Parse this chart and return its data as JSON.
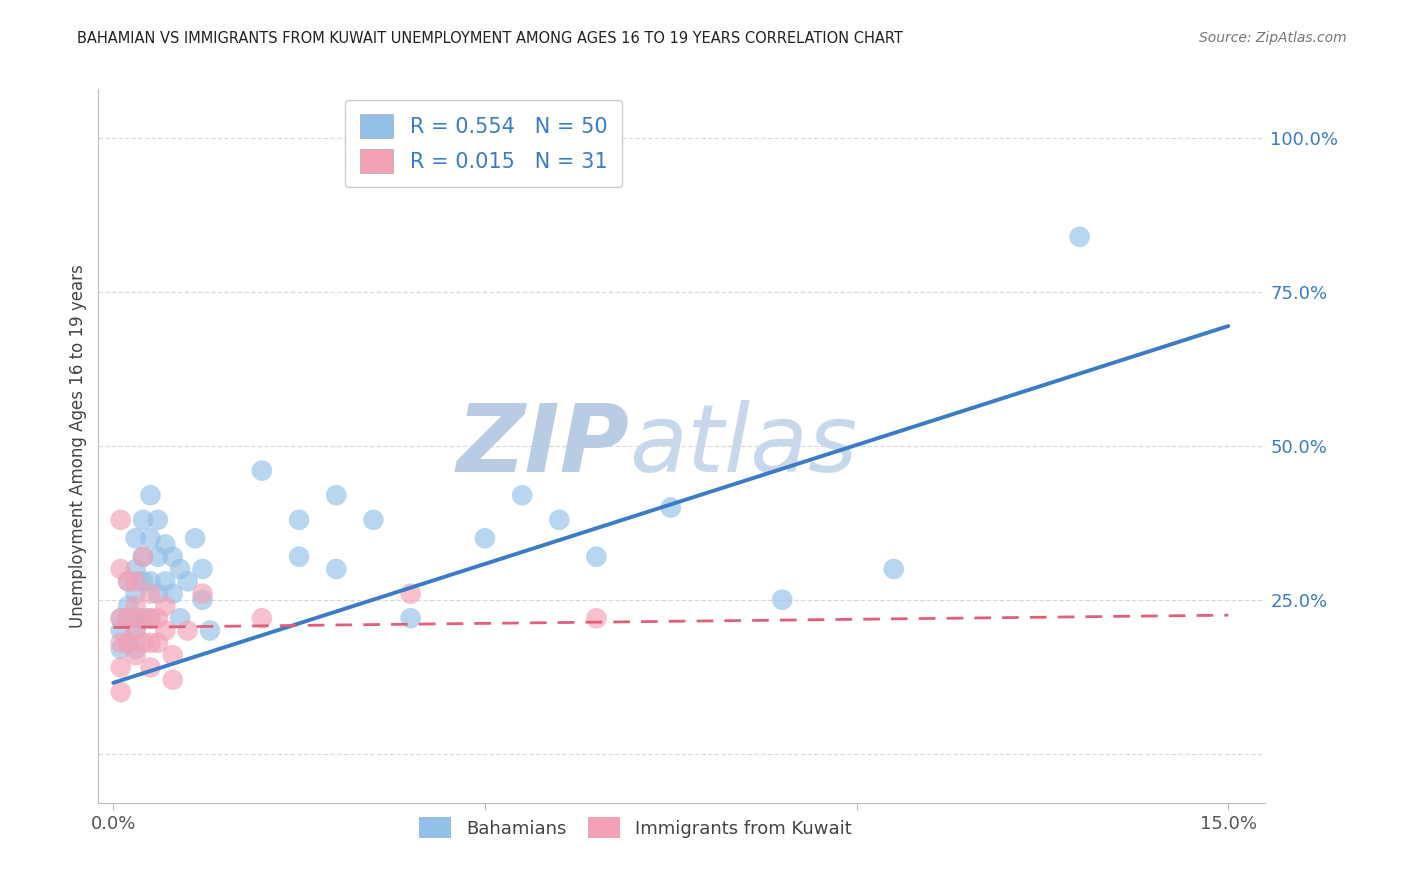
{
  "title": "BAHAMIAN VS IMMIGRANTS FROM KUWAIT UNEMPLOYMENT AMONG AGES 16 TO 19 YEARS CORRELATION CHART",
  "source": "Source: ZipAtlas.com",
  "ylabel": "Unemployment Among Ages 16 to 19 years",
  "xlim": [
    -0.002,
    0.155
  ],
  "ylim": [
    -0.08,
    1.08
  ],
  "yticks": [
    0.0,
    0.25,
    0.5,
    0.75,
    1.0
  ],
  "ytick_labels": [
    "",
    "25.0%",
    "50.0%",
    "75.0%",
    "100.0%"
  ],
  "xticks": [
    0.0,
    0.05,
    0.1,
    0.15
  ],
  "xtick_labels": [
    "0.0%",
    "",
    "",
    "15.0%"
  ],
  "r_bahamian": 0.554,
  "n_bahamian": 50,
  "r_kuwait": 0.015,
  "n_kuwait": 31,
  "bahamian_color": "#92c0e8",
  "kuwait_color": "#f4a0b5",
  "trend_bahamian_color": "#3a7cc5",
  "trend_kuwait_color": "#e0607a",
  "background_color": "#ffffff",
  "grid_color": "#d0d0d0",
  "watermark_text": "ZIPatlas",
  "watermark_color": "#d0dff0",
  "legend_label_bahamian": "Bahamians",
  "legend_label_kuwait": "Immigrants from Kuwait",
  "bah_trend_x0": 0.0,
  "bah_trend_y0": 0.115,
  "bah_trend_x1": 0.15,
  "bah_trend_y1": 0.695,
  "kuw_trend_x0": 0.0,
  "kuw_trend_y0": 0.205,
  "kuw_trend_x1": 0.15,
  "kuw_trend_y1": 0.225,
  "bahamian_x": [
    0.001,
    0.001,
    0.001,
    0.002,
    0.002,
    0.002,
    0.002,
    0.003,
    0.003,
    0.003,
    0.003,
    0.003,
    0.003,
    0.004,
    0.004,
    0.004,
    0.004,
    0.005,
    0.005,
    0.005,
    0.005,
    0.006,
    0.006,
    0.006,
    0.007,
    0.007,
    0.008,
    0.008,
    0.009,
    0.009,
    0.01,
    0.011,
    0.012,
    0.012,
    0.013,
    0.02,
    0.025,
    0.025,
    0.03,
    0.03,
    0.035,
    0.04,
    0.05,
    0.055,
    0.06,
    0.065,
    0.075,
    0.09,
    0.105,
    0.13
  ],
  "bahamian_y": [
    0.22,
    0.2,
    0.17,
    0.28,
    0.24,
    0.22,
    0.18,
    0.35,
    0.3,
    0.26,
    0.22,
    0.2,
    0.17,
    0.38,
    0.32,
    0.28,
    0.22,
    0.42,
    0.35,
    0.28,
    0.22,
    0.38,
    0.32,
    0.26,
    0.34,
    0.28,
    0.32,
    0.26,
    0.3,
    0.22,
    0.28,
    0.35,
    0.3,
    0.25,
    0.2,
    0.46,
    0.38,
    0.32,
    0.42,
    0.3,
    0.38,
    0.22,
    0.35,
    0.42,
    0.38,
    0.32,
    0.4,
    0.25,
    0.3,
    0.84
  ],
  "kuwait_x": [
    0.001,
    0.001,
    0.001,
    0.001,
    0.001,
    0.001,
    0.002,
    0.002,
    0.002,
    0.003,
    0.003,
    0.003,
    0.003,
    0.004,
    0.004,
    0.004,
    0.005,
    0.005,
    0.005,
    0.005,
    0.006,
    0.006,
    0.007,
    0.007,
    0.008,
    0.008,
    0.01,
    0.012,
    0.02,
    0.04,
    0.065
  ],
  "kuwait_y": [
    0.38,
    0.3,
    0.22,
    0.18,
    0.14,
    0.1,
    0.28,
    0.22,
    0.18,
    0.28,
    0.24,
    0.2,
    0.16,
    0.32,
    0.22,
    0.18,
    0.26,
    0.22,
    0.18,
    0.14,
    0.22,
    0.18,
    0.24,
    0.2,
    0.16,
    0.12,
    0.2,
    0.26,
    0.22,
    0.26,
    0.22
  ]
}
